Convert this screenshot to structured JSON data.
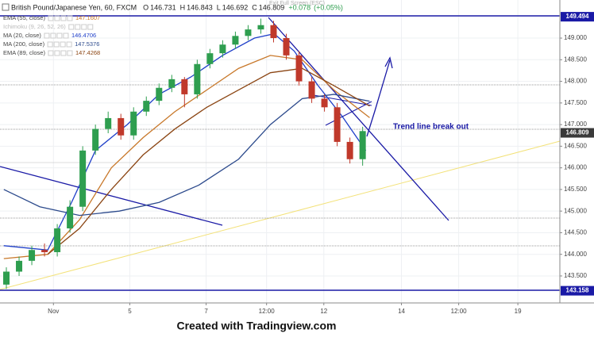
{
  "chart_data": {
    "type": "candlestick",
    "title": "British Pound/Japanese Yen, 60, FXCM",
    "quote": [
      {
        "label": "O",
        "value": 146.731
      },
      {
        "label": "H",
        "value": 146.843
      },
      {
        "label": "L",
        "value": 146.692
      },
      {
        "label": "C",
        "value": 146.809
      }
    ],
    "change": {
      "value": 0.078,
      "label": "+0.078"
    },
    "change_pct": {
      "value": 0.05,
      "label": "(+0.05%)"
    },
    "exit_hint": "Exit Full Screen (ESC)",
    "annotation": "Trend line break out",
    "watermark": "Created with Tradingview.com",
    "x": [
      1,
      3,
      5,
      7,
      9,
      11,
      13,
      15,
      17,
      19,
      21,
      23,
      25,
      27,
      29,
      31,
      33,
      35,
      37,
      39,
      41,
      43,
      45,
      47,
      49,
      51,
      53,
      55,
      57
    ],
    "open": [
      143.3,
      143.6,
      143.85,
      144.1,
      144.05,
      144.6,
      145.1,
      146.4,
      146.9,
      147.15,
      146.75,
      147.3,
      147.55,
      147.85,
      148.05,
      147.7,
      148.4,
      148.65,
      148.85,
      149.05,
      149.2,
      149.3,
      149.0,
      148.6,
      148.0,
      147.6,
      147.4,
      146.6,
      146.2
    ],
    "high": [
      143.7,
      143.95,
      144.2,
      144.25,
      144.7,
      145.25,
      146.5,
      147.0,
      147.3,
      147.25,
      147.4,
      147.65,
      147.95,
      148.15,
      148.1,
      148.5,
      148.75,
      148.95,
      149.15,
      149.3,
      149.45,
      149.4,
      149.1,
      148.7,
      148.1,
      147.7,
      147.5,
      146.7,
      146.95
    ],
    "low": [
      143.2,
      143.5,
      143.75,
      143.95,
      143.95,
      144.5,
      145.0,
      146.3,
      146.8,
      146.65,
      146.65,
      147.2,
      147.45,
      147.75,
      147.4,
      147.6,
      148.3,
      148.55,
      148.75,
      148.95,
      149.1,
      148.9,
      148.5,
      147.9,
      147.5,
      147.3,
      146.5,
      146.1,
      146.05
    ],
    "close": [
      143.6,
      143.85,
      144.1,
      144.05,
      144.6,
      145.1,
      146.4,
      146.9,
      147.15,
      146.75,
      147.3,
      147.55,
      147.85,
      148.05,
      147.7,
      148.4,
      148.65,
      148.85,
      149.05,
      149.2,
      149.3,
      149.0,
      148.6,
      148.0,
      147.6,
      147.4,
      146.6,
      146.2,
      146.85
    ],
    "up_color": "#2e9e4f",
    "down_color": "#c0392b",
    "series": [
      {
        "name": "EMA (55, close)",
        "color": "#c8782a",
        "last_value": 147.1607,
        "x": [
          0.6,
          7.5,
          12.5,
          17.5,
          22.5,
          27.5,
          32.5,
          37.5,
          42.5,
          47.5,
          52.5,
          58.1
        ],
        "values": [
          143.9,
          144.0,
          144.8,
          146.0,
          146.7,
          147.3,
          147.8,
          148.3,
          148.6,
          148.5,
          147.8,
          147.16
        ]
      },
      {
        "name": "Ichimoku (9, 26, 52, 26)",
        "color": "#b0b0b0"
      },
      {
        "name": "MA (20, close)",
        "color": "#1f3fc9",
        "last_value": 146.4706,
        "x": [
          0.6,
          7.5,
          11.25,
          15,
          20,
          25,
          30,
          35,
          40,
          43.1,
          46.25,
          50,
          53.75,
          57.5
        ],
        "values": [
          144.2,
          144.1,
          145.2,
          146.4,
          147.0,
          147.7,
          148.1,
          148.6,
          149.0,
          149.1,
          148.7,
          147.9,
          147.2,
          146.4
        ]
      },
      {
        "name": "MA (200, close)",
        "color": "#2c4a8c",
        "last_value": 147.5376,
        "x": [
          0.6,
          6.25,
          12.5,
          18.75,
          25,
          31.25,
          37.5,
          42.5,
          47.5,
          52.5,
          58.1
        ],
        "values": [
          145.5,
          145.1,
          144.9,
          145.0,
          145.2,
          145.6,
          146.2,
          147.0,
          147.6,
          147.7,
          147.54
        ]
      },
      {
        "name": "EMA (89, close)",
        "color": "#8b4513",
        "last_value": 147.4268,
        "x": [
          7.5,
          12.5,
          17.5,
          22.5,
          27.5,
          32.5,
          37.5,
          42.5,
          47.5,
          52.5,
          58.1
        ],
        "values": [
          144.0,
          144.6,
          145.5,
          146.3,
          146.9,
          147.4,
          147.8,
          148.2,
          148.3,
          147.9,
          147.43
        ]
      }
    ],
    "price_labels": [
      {
        "value": 149.494,
        "color": "#1a1aa6"
      },
      {
        "value": 146.809,
        "color": "#3a3a3a"
      },
      {
        "value": 143.158,
        "color": "#1a1aa6"
      }
    ],
    "xlim": [
      0,
      88
    ],
    "ylim": [
      142.876,
      149.881
    ],
    "xticks": [
      {
        "value": 8.4,
        "label": "Nov"
      },
      {
        "value": 20.4,
        "label": "5"
      },
      {
        "value": 32.4,
        "label": "7"
      },
      {
        "value": 41.9,
        "label": "12:00"
      },
      {
        "value": 50.9,
        "label": "12"
      },
      {
        "value": 63.1,
        "label": "14"
      },
      {
        "value": 72.1,
        "label": "12:00"
      },
      {
        "value": 81.4,
        "label": "19"
      }
    ],
    "yticks": [
      {
        "value": 143.5,
        "label": "143.500"
      },
      {
        "value": 144,
        "label": "144.000"
      },
      {
        "value": 144.5,
        "label": "144.500"
      },
      {
        "value": 145,
        "label": "145.000"
      },
      {
        "value": 145.5,
        "label": "145.500"
      },
      {
        "value": 146,
        "label": "146.000"
      },
      {
        "value": 146.5,
        "label": "146.500"
      },
      {
        "value": 147,
        "label": "147.000"
      },
      {
        "value": 147.5,
        "label": "147.500"
      },
      {
        "value": 148,
        "label": "148.000"
      },
      {
        "value": 148.5,
        "label": "148.500"
      },
      {
        "value": 149,
        "label": "149.000"
      }
    ],
    "grid": true
  }
}
